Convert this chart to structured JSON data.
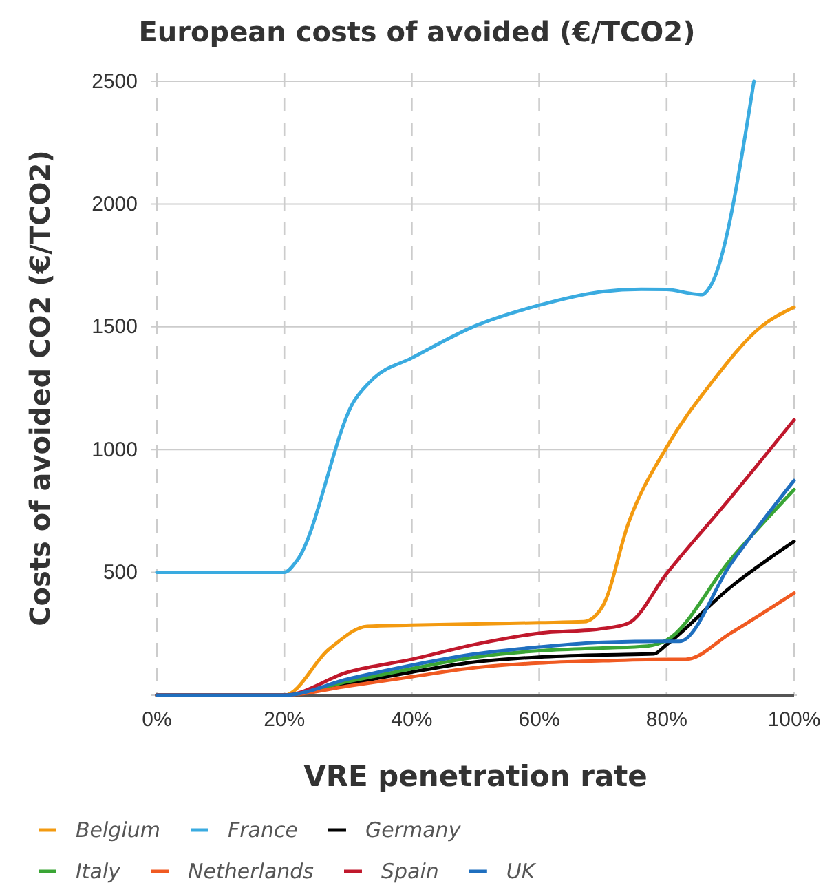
{
  "chart_data": {
    "type": "line",
    "title": "European costs of avoided (€/TCO2)",
    "xlabel": "VRE penetration rate",
    "ylabel": "Costs of avoided CO2 (€/TCO2)",
    "xlim": [
      0,
      100
    ],
    "xticks": [
      {
        "value": 0,
        "label": "0%"
      },
      {
        "value": 20,
        "label": "20%"
      },
      {
        "value": 40,
        "label": "40%"
      },
      {
        "value": 60,
        "label": "60%"
      },
      {
        "value": 80,
        "label": "80%"
      },
      {
        "value": 100,
        "label": "100%"
      }
    ],
    "ylim": [
      0,
      2500
    ],
    "yticks": [
      {
        "value": 0,
        "label": null
      },
      500,
      1000,
      1500,
      2000,
      2500
    ],
    "grid": true,
    "legend": "bottom",
    "line_style": "solid",
    "marker": "none",
    "series": [
      {
        "name": "Belgium",
        "color": "#f39a10",
        "x": [
          0,
          20,
          27,
          33,
          40,
          60,
          67,
          70,
          74,
          80,
          87,
          95,
          100
        ],
        "values": [
          0,
          0,
          187,
          280,
          285,
          295,
          299,
          364,
          700,
          1010,
          1271,
          1504,
          1580
        ]
      },
      {
        "name": "France",
        "color": "#3aabe0",
        "x": [
          0,
          20,
          22,
          31,
          34,
          40,
          50,
          60,
          70,
          76,
          80,
          84,
          85.5,
          87,
          93.7
        ],
        "values": [
          500,
          500,
          549,
          1200,
          1290,
          1373,
          1504,
          1588,
          1644,
          1653,
          1652,
          1635,
          1631,
          1672,
          2500
        ]
      },
      {
        "name": "Germany",
        "color": "#000000",
        "x": [
          0,
          20,
          30,
          40,
          50,
          60,
          70,
          78,
          80,
          90,
          100
        ],
        "values": [
          0,
          0,
          47,
          94,
          135,
          155,
          164,
          168,
          206,
          439,
          626
        ]
      },
      {
        "name": "Italy",
        "color": "#3aa535",
        "x": [
          0,
          20,
          30,
          40,
          50,
          60,
          70,
          77,
          80,
          90,
          100
        ],
        "values": [
          0,
          0,
          56,
          108,
          155,
          181,
          192,
          200,
          224,
          551,
          837
        ]
      },
      {
        "name": "Netherlands",
        "color": "#f05a22",
        "x": [
          0,
          20,
          30,
          40,
          50,
          60,
          70,
          80,
          83,
          90,
          100
        ],
        "values": [
          0,
          0,
          37,
          75,
          112,
          131,
          140,
          146,
          146,
          252,
          416
        ]
      },
      {
        "name": "Spain",
        "color": "#c0182c",
        "x": [
          0,
          20,
          30,
          40,
          50,
          60,
          70,
          74,
          80,
          90,
          100
        ],
        "values": [
          0,
          0,
          94,
          146,
          207,
          252,
          271,
          293,
          495,
          803,
          1121
        ]
      },
      {
        "name": "UK",
        "color": "#1f6fbf",
        "x": [
          0,
          20,
          30,
          40,
          50,
          60,
          70,
          80,
          82,
          90,
          100
        ],
        "values": [
          0,
          0,
          66,
          122,
          168,
          196,
          215,
          219,
          219,
          532,
          874
        ]
      }
    ]
  }
}
